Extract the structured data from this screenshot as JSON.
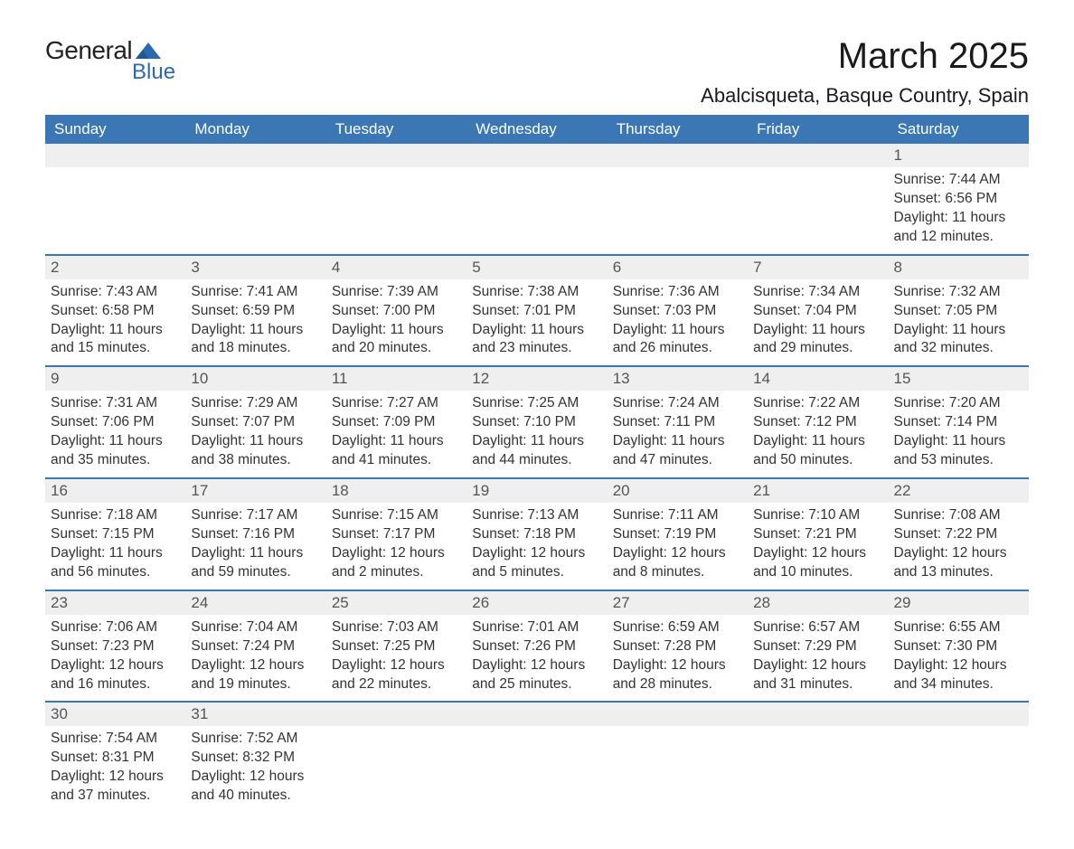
{
  "logo": {
    "text_general": "General",
    "text_blue": "Blue",
    "shape_color": "#2a6ab0"
  },
  "title": "March 2025",
  "location": "Abalcisqueta, Basque Country, Spain",
  "colors": {
    "header_bg": "#3a77b4",
    "header_text": "#ffffff",
    "daynum_bg": "#efefef",
    "row_divider": "#3a77b4",
    "body_text": "#333333",
    "daynum_text": "#555555",
    "page_bg": "#ffffff"
  },
  "typography": {
    "title_fontsize": 40,
    "location_fontsize": 22,
    "header_fontsize": 17,
    "daynum_fontsize": 17,
    "cell_fontsize": 15.5,
    "font_family": "Arial"
  },
  "day_headers": [
    "Sunday",
    "Monday",
    "Tuesday",
    "Wednesday",
    "Thursday",
    "Friday",
    "Saturday"
  ],
  "weeks": [
    [
      null,
      null,
      null,
      null,
      null,
      null,
      {
        "num": "1",
        "sunrise": "Sunrise: 7:44 AM",
        "sunset": "Sunset: 6:56 PM",
        "daylight": "Daylight: 11 hours and 12 minutes."
      }
    ],
    [
      {
        "num": "2",
        "sunrise": "Sunrise: 7:43 AM",
        "sunset": "Sunset: 6:58 PM",
        "daylight": "Daylight: 11 hours and 15 minutes."
      },
      {
        "num": "3",
        "sunrise": "Sunrise: 7:41 AM",
        "sunset": "Sunset: 6:59 PM",
        "daylight": "Daylight: 11 hours and 18 minutes."
      },
      {
        "num": "4",
        "sunrise": "Sunrise: 7:39 AM",
        "sunset": "Sunset: 7:00 PM",
        "daylight": "Daylight: 11 hours and 20 minutes."
      },
      {
        "num": "5",
        "sunrise": "Sunrise: 7:38 AM",
        "sunset": "Sunset: 7:01 PM",
        "daylight": "Daylight: 11 hours and 23 minutes."
      },
      {
        "num": "6",
        "sunrise": "Sunrise: 7:36 AM",
        "sunset": "Sunset: 7:03 PM",
        "daylight": "Daylight: 11 hours and 26 minutes."
      },
      {
        "num": "7",
        "sunrise": "Sunrise: 7:34 AM",
        "sunset": "Sunset: 7:04 PM",
        "daylight": "Daylight: 11 hours and 29 minutes."
      },
      {
        "num": "8",
        "sunrise": "Sunrise: 7:32 AM",
        "sunset": "Sunset: 7:05 PM",
        "daylight": "Daylight: 11 hours and 32 minutes."
      }
    ],
    [
      {
        "num": "9",
        "sunrise": "Sunrise: 7:31 AM",
        "sunset": "Sunset: 7:06 PM",
        "daylight": "Daylight: 11 hours and 35 minutes."
      },
      {
        "num": "10",
        "sunrise": "Sunrise: 7:29 AM",
        "sunset": "Sunset: 7:07 PM",
        "daylight": "Daylight: 11 hours and 38 minutes."
      },
      {
        "num": "11",
        "sunrise": "Sunrise: 7:27 AM",
        "sunset": "Sunset: 7:09 PM",
        "daylight": "Daylight: 11 hours and 41 minutes."
      },
      {
        "num": "12",
        "sunrise": "Sunrise: 7:25 AM",
        "sunset": "Sunset: 7:10 PM",
        "daylight": "Daylight: 11 hours and 44 minutes."
      },
      {
        "num": "13",
        "sunrise": "Sunrise: 7:24 AM",
        "sunset": "Sunset: 7:11 PM",
        "daylight": "Daylight: 11 hours and 47 minutes."
      },
      {
        "num": "14",
        "sunrise": "Sunrise: 7:22 AM",
        "sunset": "Sunset: 7:12 PM",
        "daylight": "Daylight: 11 hours and 50 minutes."
      },
      {
        "num": "15",
        "sunrise": "Sunrise: 7:20 AM",
        "sunset": "Sunset: 7:14 PM",
        "daylight": "Daylight: 11 hours and 53 minutes."
      }
    ],
    [
      {
        "num": "16",
        "sunrise": "Sunrise: 7:18 AM",
        "sunset": "Sunset: 7:15 PM",
        "daylight": "Daylight: 11 hours and 56 minutes."
      },
      {
        "num": "17",
        "sunrise": "Sunrise: 7:17 AM",
        "sunset": "Sunset: 7:16 PM",
        "daylight": "Daylight: 11 hours and 59 minutes."
      },
      {
        "num": "18",
        "sunrise": "Sunrise: 7:15 AM",
        "sunset": "Sunset: 7:17 PM",
        "daylight": "Daylight: 12 hours and 2 minutes."
      },
      {
        "num": "19",
        "sunrise": "Sunrise: 7:13 AM",
        "sunset": "Sunset: 7:18 PM",
        "daylight": "Daylight: 12 hours and 5 minutes."
      },
      {
        "num": "20",
        "sunrise": "Sunrise: 7:11 AM",
        "sunset": "Sunset: 7:19 PM",
        "daylight": "Daylight: 12 hours and 8 minutes."
      },
      {
        "num": "21",
        "sunrise": "Sunrise: 7:10 AM",
        "sunset": "Sunset: 7:21 PM",
        "daylight": "Daylight: 12 hours and 10 minutes."
      },
      {
        "num": "22",
        "sunrise": "Sunrise: 7:08 AM",
        "sunset": "Sunset: 7:22 PM",
        "daylight": "Daylight: 12 hours and 13 minutes."
      }
    ],
    [
      {
        "num": "23",
        "sunrise": "Sunrise: 7:06 AM",
        "sunset": "Sunset: 7:23 PM",
        "daylight": "Daylight: 12 hours and 16 minutes."
      },
      {
        "num": "24",
        "sunrise": "Sunrise: 7:04 AM",
        "sunset": "Sunset: 7:24 PM",
        "daylight": "Daylight: 12 hours and 19 minutes."
      },
      {
        "num": "25",
        "sunrise": "Sunrise: 7:03 AM",
        "sunset": "Sunset: 7:25 PM",
        "daylight": "Daylight: 12 hours and 22 minutes."
      },
      {
        "num": "26",
        "sunrise": "Sunrise: 7:01 AM",
        "sunset": "Sunset: 7:26 PM",
        "daylight": "Daylight: 12 hours and 25 minutes."
      },
      {
        "num": "27",
        "sunrise": "Sunrise: 6:59 AM",
        "sunset": "Sunset: 7:28 PM",
        "daylight": "Daylight: 12 hours and 28 minutes."
      },
      {
        "num": "28",
        "sunrise": "Sunrise: 6:57 AM",
        "sunset": "Sunset: 7:29 PM",
        "daylight": "Daylight: 12 hours and 31 minutes."
      },
      {
        "num": "29",
        "sunrise": "Sunrise: 6:55 AM",
        "sunset": "Sunset: 7:30 PM",
        "daylight": "Daylight: 12 hours and 34 minutes."
      }
    ],
    [
      {
        "num": "30",
        "sunrise": "Sunrise: 7:54 AM",
        "sunset": "Sunset: 8:31 PM",
        "daylight": "Daylight: 12 hours and 37 minutes."
      },
      {
        "num": "31",
        "sunrise": "Sunrise: 7:52 AM",
        "sunset": "Sunset: 8:32 PM",
        "daylight": "Daylight: 12 hours and 40 minutes."
      },
      null,
      null,
      null,
      null,
      null
    ]
  ]
}
